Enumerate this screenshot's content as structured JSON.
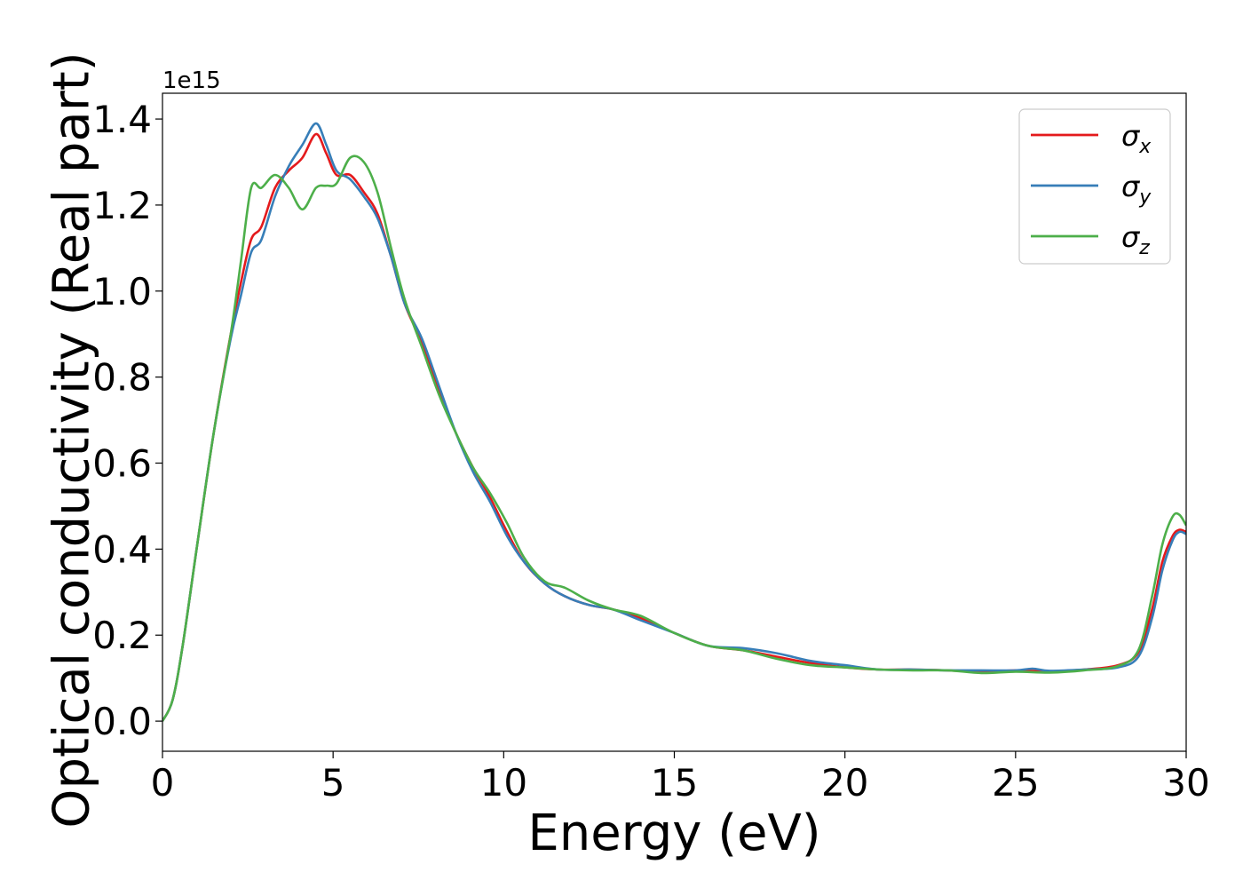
{
  "chart_data": {
    "type": "line",
    "xlabel": "Energy (eV)",
    "ylabel": "Optical conductivity (Real part)",
    "offset_text": "1e15",
    "xlim": [
      0,
      30
    ],
    "ylim": [
      -0.07,
      1.46
    ],
    "xticks": [
      0,
      5,
      10,
      15,
      20,
      25,
      30
    ],
    "xtick_labels": [
      "0",
      "5",
      "10",
      "15",
      "20",
      "25",
      "30"
    ],
    "yticks": [
      0.0,
      0.2,
      0.4,
      0.6,
      0.8,
      1.0,
      1.2,
      1.4
    ],
    "ytick_labels": [
      "0.0",
      "0.2",
      "0.4",
      "0.6",
      "0.8",
      "1.0",
      "1.2",
      "1.4"
    ],
    "grid": false,
    "legend_position": "top-right",
    "series": [
      {
        "name": "σx",
        "color": "#e41a1c",
        "x": [
          0,
          0.3,
          0.6,
          1.0,
          1.5,
          2.0,
          2.3,
          2.6,
          2.9,
          3.3,
          3.7,
          4.1,
          4.5,
          4.8,
          5.1,
          5.5,
          5.9,
          6.3,
          6.7,
          7.1,
          7.6,
          8.1,
          8.6,
          9.1,
          9.6,
          10.1,
          10.6,
          11.2,
          11.8,
          12.5,
          13.2,
          14.0,
          15.0,
          16.0,
          17.0,
          18.0,
          19.0,
          20.0,
          21.0,
          22.0,
          23.0,
          24.0,
          25.0,
          26.0,
          27.0,
          28.0,
          28.6,
          29.0,
          29.3,
          29.6,
          29.8,
          30.0
        ],
        "values": [
          0.0,
          0.05,
          0.18,
          0.4,
          0.67,
          0.9,
          1.02,
          1.12,
          1.15,
          1.24,
          1.28,
          1.31,
          1.365,
          1.32,
          1.27,
          1.27,
          1.23,
          1.18,
          1.08,
          0.97,
          0.88,
          0.77,
          0.67,
          0.59,
          0.52,
          0.44,
          0.37,
          0.32,
          0.29,
          0.27,
          0.26,
          0.24,
          0.205,
          0.175,
          0.165,
          0.15,
          0.135,
          0.125,
          0.12,
          0.12,
          0.118,
          0.115,
          0.118,
          0.116,
          0.12,
          0.13,
          0.16,
          0.26,
          0.37,
          0.43,
          0.445,
          0.44
        ]
      },
      {
        "name": "σy",
        "color": "#377eb8",
        "x": [
          0,
          0.3,
          0.6,
          1.0,
          1.5,
          2.0,
          2.3,
          2.6,
          2.9,
          3.3,
          3.7,
          4.1,
          4.5,
          4.8,
          5.1,
          5.5,
          5.9,
          6.3,
          6.7,
          7.1,
          7.6,
          8.1,
          8.6,
          9.1,
          9.6,
          10.1,
          10.6,
          11.2,
          11.8,
          12.5,
          13.2,
          14.0,
          15.0,
          16.0,
          17.0,
          18.0,
          19.0,
          20.0,
          21.0,
          22.0,
          23.0,
          24.0,
          25.0,
          25.5,
          26.0,
          27.0,
          28.0,
          28.6,
          29.0,
          29.3,
          29.6,
          29.8,
          30.0
        ],
        "values": [
          0.0,
          0.05,
          0.18,
          0.4,
          0.67,
          0.89,
          0.99,
          1.09,
          1.12,
          1.22,
          1.29,
          1.34,
          1.39,
          1.34,
          1.28,
          1.26,
          1.22,
          1.17,
          1.08,
          0.97,
          0.89,
          0.78,
          0.67,
          0.58,
          0.51,
          0.43,
          0.37,
          0.32,
          0.29,
          0.27,
          0.26,
          0.235,
          0.205,
          0.175,
          0.17,
          0.158,
          0.14,
          0.13,
          0.12,
          0.12,
          0.118,
          0.118,
          0.118,
          0.122,
          0.117,
          0.12,
          0.125,
          0.15,
          0.24,
          0.35,
          0.42,
          0.44,
          0.435
        ]
      },
      {
        "name": "σz",
        "color": "#4daf4a",
        "x": [
          0,
          0.3,
          0.6,
          1.0,
          1.5,
          2.0,
          2.3,
          2.6,
          2.9,
          3.3,
          3.7,
          4.1,
          4.5,
          4.8,
          5.1,
          5.5,
          5.9,
          6.3,
          6.7,
          7.1,
          7.6,
          8.1,
          8.6,
          9.1,
          9.6,
          10.1,
          10.6,
          11.2,
          11.8,
          12.5,
          13.2,
          14.0,
          15.0,
          16.0,
          17.0,
          18.0,
          19.0,
          20.0,
          21.0,
          22.0,
          23.0,
          24.0,
          25.0,
          26.0,
          27.0,
          28.0,
          28.6,
          29.0,
          29.3,
          29.6,
          29.8,
          30.0
        ],
        "values": [
          0.0,
          0.05,
          0.18,
          0.4,
          0.67,
          0.9,
          1.07,
          1.24,
          1.24,
          1.27,
          1.24,
          1.19,
          1.24,
          1.245,
          1.25,
          1.31,
          1.3,
          1.23,
          1.1,
          0.98,
          0.87,
          0.76,
          0.67,
          0.59,
          0.53,
          0.46,
          0.38,
          0.325,
          0.31,
          0.28,
          0.26,
          0.245,
          0.205,
          0.175,
          0.165,
          0.145,
          0.13,
          0.125,
          0.12,
          0.118,
          0.118,
          0.112,
          0.115,
          0.113,
          0.118,
          0.128,
          0.165,
          0.29,
          0.41,
          0.475,
          0.48,
          0.455
        ]
      }
    ]
  }
}
